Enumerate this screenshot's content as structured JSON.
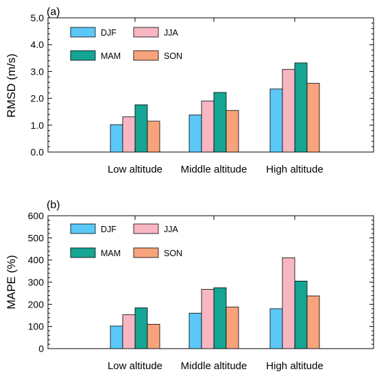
{
  "chart_data": [
    {
      "type": "bar",
      "panel_label": "(a)",
      "title": "",
      "xlabel": "",
      "ylabel": "RMSD (m/s)",
      "ylim": [
        0,
        5
      ],
      "yticks": [
        0,
        1,
        2,
        3,
        4,
        5
      ],
      "ytick_labels": [
        "0.0",
        "1.0",
        "2.0",
        "3.0",
        "4.0",
        "5.0"
      ],
      "minor_ticks": true,
      "grid": false,
      "legend": "top-left",
      "categories": [
        "Low altitude",
        "Middle altitude",
        "High altitude"
      ],
      "series": [
        {
          "name": "DJF",
          "color": "#5BC8F7",
          "values": [
            1.02,
            1.38,
            2.35
          ]
        },
        {
          "name": "MAM",
          "color": "#16A594",
          "values": [
            1.76,
            2.22,
            3.32
          ]
        },
        {
          "name": "JJA",
          "color": "#F7B6C2",
          "values": [
            1.31,
            1.9,
            3.08
          ]
        },
        {
          "name": "SON",
          "color": "#F7A37C",
          "values": [
            1.15,
            1.55,
            2.56
          ]
        }
      ]
    },
    {
      "type": "bar",
      "panel_label": "(b)",
      "title": "",
      "xlabel": "",
      "ylabel": "MAPE (%)",
      "ylim": [
        0,
        600
      ],
      "yticks": [
        0,
        100,
        200,
        300,
        400,
        500,
        600
      ],
      "ytick_labels": [
        "0",
        "100",
        "200",
        "300",
        "400",
        "500",
        "600"
      ],
      "minor_ticks": true,
      "grid": false,
      "legend": "top-left",
      "categories": [
        "Low altitude",
        "Middle altitude",
        "High altitude"
      ],
      "series": [
        {
          "name": "DJF",
          "color": "#5BC8F7",
          "values": [
            102,
            160,
            180
          ]
        },
        {
          "name": "MAM",
          "color": "#16A594",
          "values": [
            184,
            275,
            305
          ]
        },
        {
          "name": "JJA",
          "color": "#F7B6C2",
          "values": [
            153,
            268,
            410
          ]
        },
        {
          "name": "SON",
          "color": "#F7A37C",
          "values": [
            110,
            188,
            238
          ]
        }
      ]
    }
  ]
}
